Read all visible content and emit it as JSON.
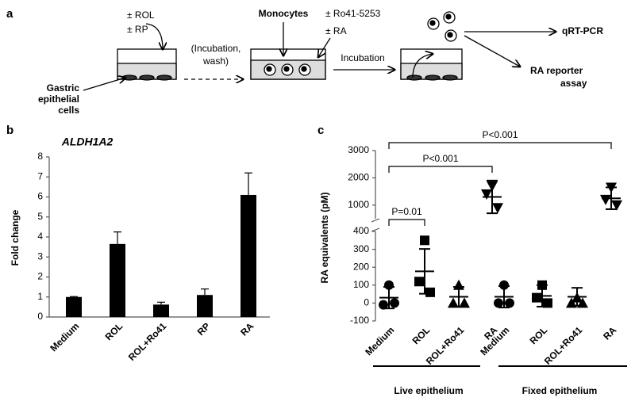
{
  "panels": [
    "a",
    "b",
    "c"
  ],
  "diagram": {
    "treat1": [
      "± ROL",
      "± RP"
    ],
    "cells": [
      "Gastric",
      "epithelial",
      "cells"
    ],
    "wash": [
      "(Incubation,",
      "wash)"
    ],
    "monocytes": "Monocytes",
    "treat2": [
      "± Ro41-5253",
      "± RA"
    ],
    "incubation": "Incubation",
    "out1": "qRT-PCR",
    "out2": [
      "RA reporter",
      "assay"
    ]
  },
  "chart_data": [
    {
      "type": "bar",
      "title": "ALDH1A2",
      "y_label": "Fold change",
      "categories": [
        "Medium",
        "ROL",
        "ROL+Ro41",
        "RP",
        "RA"
      ],
      "values": [
        1.0,
        3.65,
        0.62,
        1.1,
        6.1
      ],
      "errors": [
        0.02,
        0.6,
        0.12,
        0.3,
        1.1
      ],
      "color": "#000000",
      "ylim": [
        0,
        8
      ],
      "yticks": [
        0,
        1,
        2,
        3,
        4,
        5,
        6,
        7,
        8
      ]
    },
    {
      "type": "scatter",
      "y_label": "RA equivalents (pM)",
      "categories": [
        "Medium",
        "ROL",
        "ROL+Ro41",
        "RA",
        "Medium",
        "ROL",
        "ROL+Ro41",
        "RA"
      ],
      "group_labels": [
        "Live epithelium",
        "Fixed epithelium"
      ],
      "groups": [
        {
          "marker": "circle",
          "points": [
            100,
            -10,
            0
          ],
          "mean": 30,
          "sd": 60
        },
        {
          "marker": "square",
          "points": [
            350,
            120,
            60
          ],
          "mean": 177,
          "sd": 125
        },
        {
          "marker": "triangle",
          "points": [
            100,
            0,
            0
          ],
          "mean": 35,
          "sd": 55
        },
        {
          "marker": "triangle-down",
          "points": [
            1700,
            1400,
            900
          ],
          "mean": 1300,
          "sd": 600
        },
        {
          "marker": "circle",
          "points": [
            100,
            0,
            0
          ],
          "mean": 35,
          "sd": 60
        },
        {
          "marker": "square",
          "points": [
            100,
            30,
            0
          ],
          "mean": 40,
          "sd": 60
        },
        {
          "marker": "triangle",
          "points": [
            30,
            0,
            0
          ],
          "mean": 35,
          "sd": 50
        },
        {
          "marker": "triangle-down",
          "points": [
            1650,
            1200,
            1000
          ],
          "mean": 1250,
          "sd": 400
        }
      ],
      "color": "#000000",
      "ylim": [
        -100,
        400
      ],
      "yticks": [
        -100,
        0,
        100,
        200,
        300,
        400
      ],
      "y2lim": [
        500,
        3000
      ],
      "y2ticks": [
        1000,
        2000,
        3000
      ],
      "annotations": [
        "P=0.01",
        "P<0.001",
        "P<0.001"
      ]
    }
  ]
}
